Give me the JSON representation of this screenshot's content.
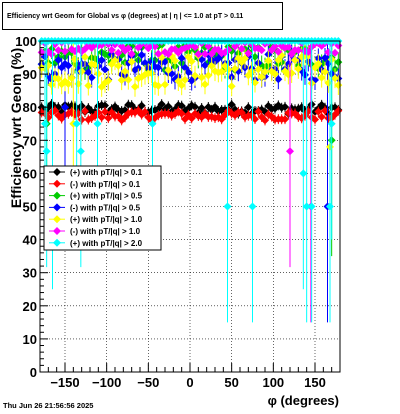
{
  "chart_data": {
    "type": "scatter",
    "title": "Efficiency wrt Geom for Global vs φ (degrees) at |  η  | <= 1.0 at pT > 0.11",
    "xlabel": "φ (degrees)",
    "ylabel": "Efficiency wrt Geom (%)",
    "xlim": [
      -180,
      180
    ],
    "ylim": [
      0,
      100
    ],
    "xticks": [
      "−150",
      "−100",
      "−50",
      "0",
      "50",
      "100",
      "150"
    ],
    "xtick_values": [
      -150,
      -100,
      -50,
      0,
      50,
      100,
      150
    ],
    "yticks": [
      "0",
      "10",
      "20",
      "30",
      "40",
      "50",
      "60",
      "70",
      "80",
      "90",
      "100"
    ],
    "ytick_values": [
      0,
      10,
      20,
      30,
      40,
      50,
      60,
      70,
      80,
      90,
      100
    ],
    "grid": true,
    "legend_position": "left-middle",
    "series": [
      {
        "name": "(+) with pT/|q| > 0.1",
        "color": "#000000",
        "marker": "diamond",
        "base": 79.5,
        "spread": 1.5,
        "error": 1.5,
        "outliers": []
      },
      {
        "name": "(-) with pT/|q| > 0.1",
        "color": "#ff0000",
        "marker": "diamond",
        "base": 77.5,
        "spread": 1.5,
        "error": 1.5,
        "outliers": []
      },
      {
        "name": "(+) with pT/|q| > 0.5",
        "color": "#00cc00",
        "marker": "diamond",
        "base": 95,
        "spread": 4,
        "error": 3,
        "outliers": [
          [
            -172,
            75
          ],
          [
            170,
            70
          ]
        ]
      },
      {
        "name": "(-) with pT/|q| > 0.5",
        "color": "#0000ff",
        "marker": "diamond",
        "base": 92,
        "spread": 4,
        "error": 3,
        "outliers": [
          [
            -150,
            80
          ],
          [
            165,
            50
          ]
        ]
      },
      {
        "name": "(+) with pT/|q| > 1.0",
        "color": "#ffff00",
        "marker": "diamond",
        "base": 91,
        "spread": 5,
        "error": 3,
        "outliers": [
          [
            -140,
            75
          ],
          [
            168,
            68
          ]
        ]
      },
      {
        "name": "(-) with pT/|q| > 1.0",
        "color": "#ff00ff",
        "marker": "diamond",
        "base": 98,
        "spread": 2,
        "error": 1,
        "outliers": [
          [
            120,
            66.7
          ],
          [
            145,
            50
          ]
        ]
      },
      {
        "name": "(+) with pT/|q| > 2.0",
        "color": "#00ffff",
        "marker": "diamond",
        "base": 100,
        "spread": 0,
        "error": 0,
        "outliers": [
          [
            -174,
            75
          ],
          [
            -172,
            66.7
          ],
          [
            -165,
            60
          ],
          [
            -136,
            75
          ],
          [
            -131,
            66.7
          ],
          [
            -111,
            75
          ],
          [
            -45,
            75
          ],
          [
            45,
            50
          ],
          [
            75,
            50
          ],
          [
            136,
            60
          ],
          [
            140,
            50
          ],
          [
            146,
            50
          ],
          [
            168,
            50
          ],
          [
            170,
            75
          ]
        ]
      }
    ]
  },
  "footer_timestamp": "Thu Jun 26 21:56:56 2025"
}
